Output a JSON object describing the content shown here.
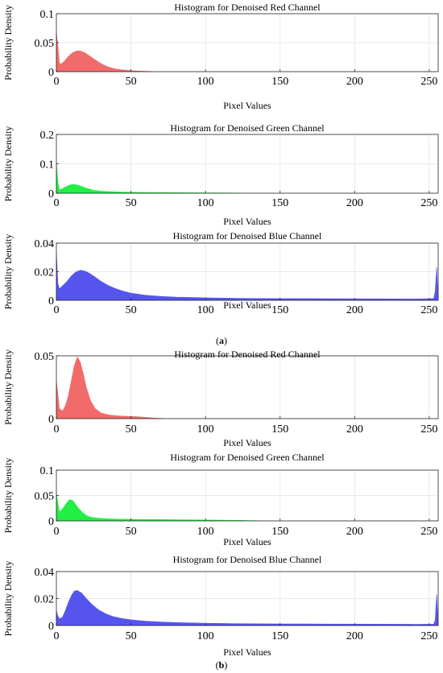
{
  "panels": [
    {
      "label": "a",
      "open": "(",
      "close": ")"
    },
    {
      "label": "b",
      "open": "(",
      "close": ")"
    }
  ],
  "chart_data": [
    {
      "type": "area",
      "panel": "a",
      "title": "Histogram for Denoised Red Channel",
      "xlabel": "Pixel Values",
      "ylabel": "Probability Density",
      "xlim": [
        0,
        256
      ],
      "ylim": [
        0,
        0.1
      ],
      "xticks": [
        0,
        50,
        100,
        150,
        200,
        250
      ],
      "yticks": [
        0,
        0.05,
        0.1
      ],
      "ytick_labels": [
        "0",
        "0.05",
        "0.1"
      ],
      "grid": true,
      "color": "#f26b6b",
      "series": [
        {
          "x": [
            0,
            1,
            2,
            3,
            5,
            8,
            11,
            14,
            17,
            20,
            24,
            28,
            32,
            36,
            40,
            45,
            50,
            55,
            60,
            65,
            66
          ],
          "y": [
            0.068,
            0.045,
            0.015,
            0.013,
            0.017,
            0.026,
            0.033,
            0.036,
            0.035,
            0.031,
            0.024,
            0.017,
            0.011,
            0.007,
            0.0045,
            0.0028,
            0.0018,
            0.0012,
            0.0007,
            0.0003,
            0
          ]
        }
      ]
    },
    {
      "type": "area",
      "panel": "a",
      "title": "Histogram for Denoised Green Channel",
      "xlabel": "Pixel Values",
      "ylabel": "Probability Density",
      "xlim": [
        0,
        256
      ],
      "ylim": [
        0,
        0.2
      ],
      "xticks": [
        0,
        50,
        100,
        150,
        200,
        250
      ],
      "yticks": [
        0,
        0.1,
        0.2
      ],
      "ytick_labels": [
        "0",
        "0.1",
        "0.2"
      ],
      "grid": true,
      "color": "#22ee44",
      "series": [
        {
          "x": [
            0,
            1,
            2,
            3,
            5,
            8,
            11,
            14,
            17,
            20,
            25,
            30,
            40,
            50,
            60,
            80,
            100,
            115,
            125
          ],
          "y": [
            0.1,
            0.04,
            0.012,
            0.013,
            0.018,
            0.026,
            0.03,
            0.028,
            0.023,
            0.017,
            0.01,
            0.007,
            0.0045,
            0.003,
            0.0025,
            0.0018,
            0.0013,
            0.0009,
            0
          ]
        }
      ]
    },
    {
      "type": "area",
      "panel": "a",
      "title": "Histogram for Denoised Blue Channel",
      "xlabel": "Pixel Values",
      "ylabel": "Probability Density",
      "xlim": [
        0,
        256
      ],
      "ylim": [
        0,
        0.04
      ],
      "xticks": [
        0,
        50,
        100,
        150,
        200,
        250
      ],
      "yticks": [
        0,
        0.02,
        0.04
      ],
      "ytick_labels": [
        "0",
        "0.02",
        "0.04"
      ],
      "grid": true,
      "color": "#5555ee",
      "series": [
        {
          "x": [
            0,
            1,
            2,
            4,
            7,
            10,
            13,
            16,
            19,
            22,
            26,
            30,
            35,
            40,
            45,
            50,
            60,
            70,
            80,
            100,
            120,
            150,
            180,
            210,
            240,
            253,
            254,
            255,
            256
          ],
          "y": [
            0.033,
            0.012,
            0.008,
            0.01,
            0.013,
            0.017,
            0.0198,
            0.021,
            0.0205,
            0.019,
            0.0162,
            0.0132,
            0.0102,
            0.008,
            0.0063,
            0.005,
            0.0035,
            0.0027,
            0.0022,
            0.0017,
            0.0014,
            0.0012,
            0.0011,
            0.001,
            0.0009,
            0.0012,
            0.006,
            0.023,
            0
          ]
        }
      ]
    },
    {
      "type": "area",
      "panel": "b",
      "title": "Histogram for Denoised Red Channel",
      "xlabel": "Pixel Values",
      "ylabel": "Probability Density",
      "xlim": [
        0,
        256
      ],
      "ylim": [
        0,
        0.05
      ],
      "xticks": [
        0,
        50,
        100,
        150,
        200,
        250
      ],
      "yticks": [
        0,
        0.05
      ],
      "ytick_labels": [
        "0",
        "0.05"
      ],
      "grid": true,
      "color": "#f26b6b",
      "series": [
        {
          "x": [
            0,
            1,
            2,
            4,
            6,
            8,
            10,
            12,
            14,
            16,
            18,
            20,
            23,
            26,
            30,
            35,
            40,
            45,
            50,
            55,
            60,
            65,
            70,
            72
          ],
          "y": [
            0.03,
            0.02,
            0.008,
            0.006,
            0.01,
            0.018,
            0.03,
            0.042,
            0.049,
            0.045,
            0.036,
            0.025,
            0.014,
            0.008,
            0.0045,
            0.003,
            0.0023,
            0.002,
            0.0018,
            0.0015,
            0.001,
            0.0005,
            0.0002,
            0
          ]
        }
      ]
    },
    {
      "type": "area",
      "panel": "b",
      "title": "Histogram for Denoised Green Channel",
      "xlabel": "Pixel Values",
      "ylabel": "Probability Density",
      "xlim": [
        0,
        256
      ],
      "ylim": [
        0,
        0.1
      ],
      "xticks": [
        0,
        50,
        100,
        150,
        200,
        250
      ],
      "yticks": [
        0,
        0.05,
        0.1
      ],
      "ytick_labels": [
        "0",
        "0.05",
        "0.1"
      ],
      "grid": true,
      "color": "#22ee44",
      "series": [
        {
          "x": [
            0,
            1,
            2,
            3,
            5,
            7,
            9,
            11,
            13,
            15,
            18,
            21,
            25,
            30,
            35,
            40,
            50,
            60,
            70,
            80,
            100,
            120,
            135,
            136
          ],
          "y": [
            0.055,
            0.035,
            0.018,
            0.02,
            0.027,
            0.036,
            0.042,
            0.04,
            0.032,
            0.024,
            0.015,
            0.009,
            0.0062,
            0.0048,
            0.004,
            0.0035,
            0.0031,
            0.0028,
            0.0026,
            0.0023,
            0.0018,
            0.0012,
            0.0004,
            0
          ]
        }
      ]
    },
    {
      "type": "area",
      "panel": "b",
      "title": "Histogram for Denoised Blue Channel",
      "xlabel": "Pixel Values",
      "ylabel": "Probability Density",
      "xlim": [
        0,
        256
      ],
      "ylim": [
        0,
        0.04
      ],
      "xticks": [
        0,
        50,
        100,
        150,
        200,
        250
      ],
      "yticks": [
        0,
        0.02,
        0.04
      ],
      "ytick_labels": [
        "0",
        "0.02",
        "0.04"
      ],
      "grid": true,
      "color": "#5555ee",
      "series": [
        {
          "x": [
            0,
            1,
            2,
            4,
            6,
            8,
            10,
            12,
            14,
            17,
            20,
            24,
            28,
            33,
            38,
            44,
            50,
            60,
            70,
            80,
            100,
            120,
            150,
            180,
            210,
            240,
            253,
            254,
            255,
            256
          ],
          "y": [
            0.011,
            0.007,
            0.005,
            0.006,
            0.011,
            0.017,
            0.022,
            0.0255,
            0.026,
            0.024,
            0.02,
            0.0155,
            0.0118,
            0.0087,
            0.0066,
            0.0052,
            0.0042,
            0.0032,
            0.0026,
            0.0022,
            0.0017,
            0.0014,
            0.0012,
            0.0011,
            0.001,
            0.0009,
            0.001,
            0.004,
            0.023,
            0
          ]
        }
      ]
    }
  ]
}
